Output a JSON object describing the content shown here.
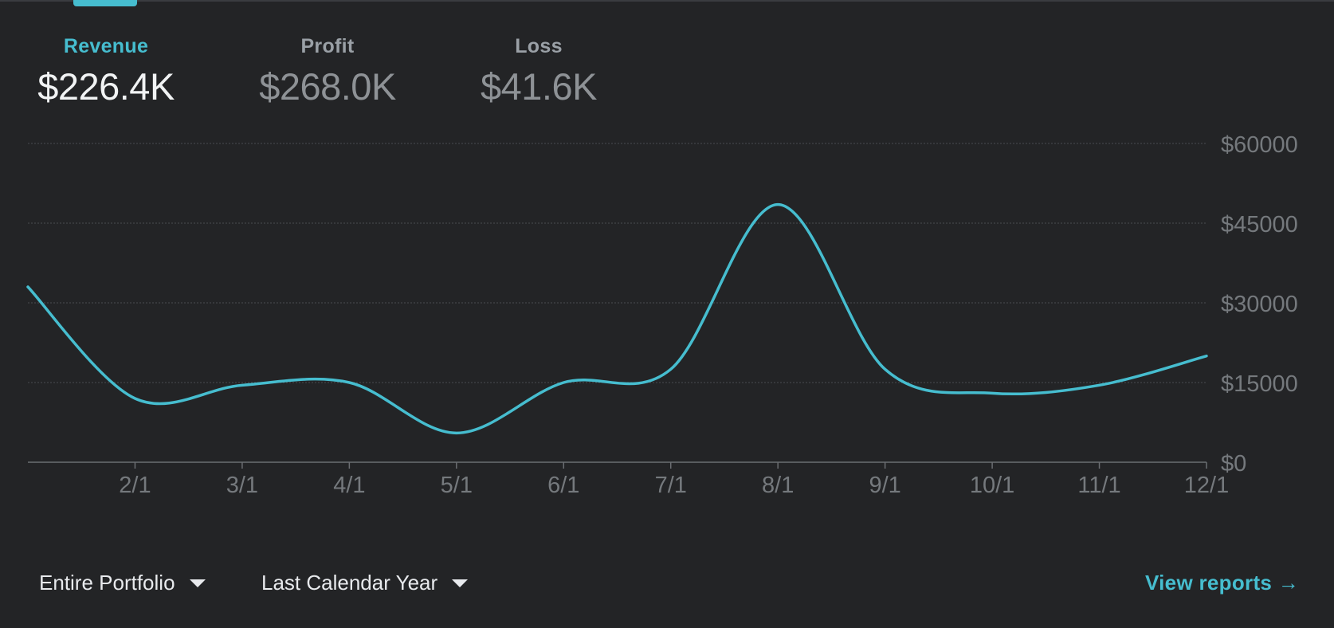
{
  "metrics": [
    {
      "label": "Revenue",
      "value": "$226.4K",
      "active": true
    },
    {
      "label": "Profit",
      "value": "$268.0K",
      "active": false
    },
    {
      "label": "Loss",
      "value": "$41.6K",
      "active": false
    }
  ],
  "filters": {
    "portfolio": "Entire Portfolio",
    "period": "Last Calendar Year"
  },
  "view_reports_label": "View reports →",
  "colors": {
    "accent": "#46bdcf",
    "background": "#232426"
  },
  "chart_data": {
    "type": "line",
    "series": [
      {
        "color": "#46bdcf",
        "points": [
          {
            "x": "1/1",
            "y": 33000
          },
          {
            "x": "2/1",
            "y": 12000
          },
          {
            "x": "3/1",
            "y": 14500
          },
          {
            "x": "4/1",
            "y": 15000
          },
          {
            "x": "5/1",
            "y": 5500
          },
          {
            "x": "6/1",
            "y": 15000
          },
          {
            "x": "7/1",
            "y": 17500
          },
          {
            "x": "8/1",
            "y": 48500
          },
          {
            "x": "9/1",
            "y": 17500
          },
          {
            "x": "10/1",
            "y": 13000
          },
          {
            "x": "11/1",
            "y": 14500
          },
          {
            "x": "12/1",
            "y": 20000
          }
        ]
      }
    ],
    "x_tick_labels": [
      "2/1",
      "3/1",
      "4/1",
      "5/1",
      "6/1",
      "7/1",
      "8/1",
      "9/1",
      "10/1",
      "11/1",
      "12/1"
    ],
    "y_tick_labels": [
      "$0",
      "$15000",
      "$30000",
      "$45000",
      "$60000"
    ],
    "y_ticks": [
      0,
      15000,
      30000,
      45000,
      60000
    ],
    "ylim": [
      0,
      60000
    ],
    "grid": true,
    "y_axis_side": "right"
  }
}
